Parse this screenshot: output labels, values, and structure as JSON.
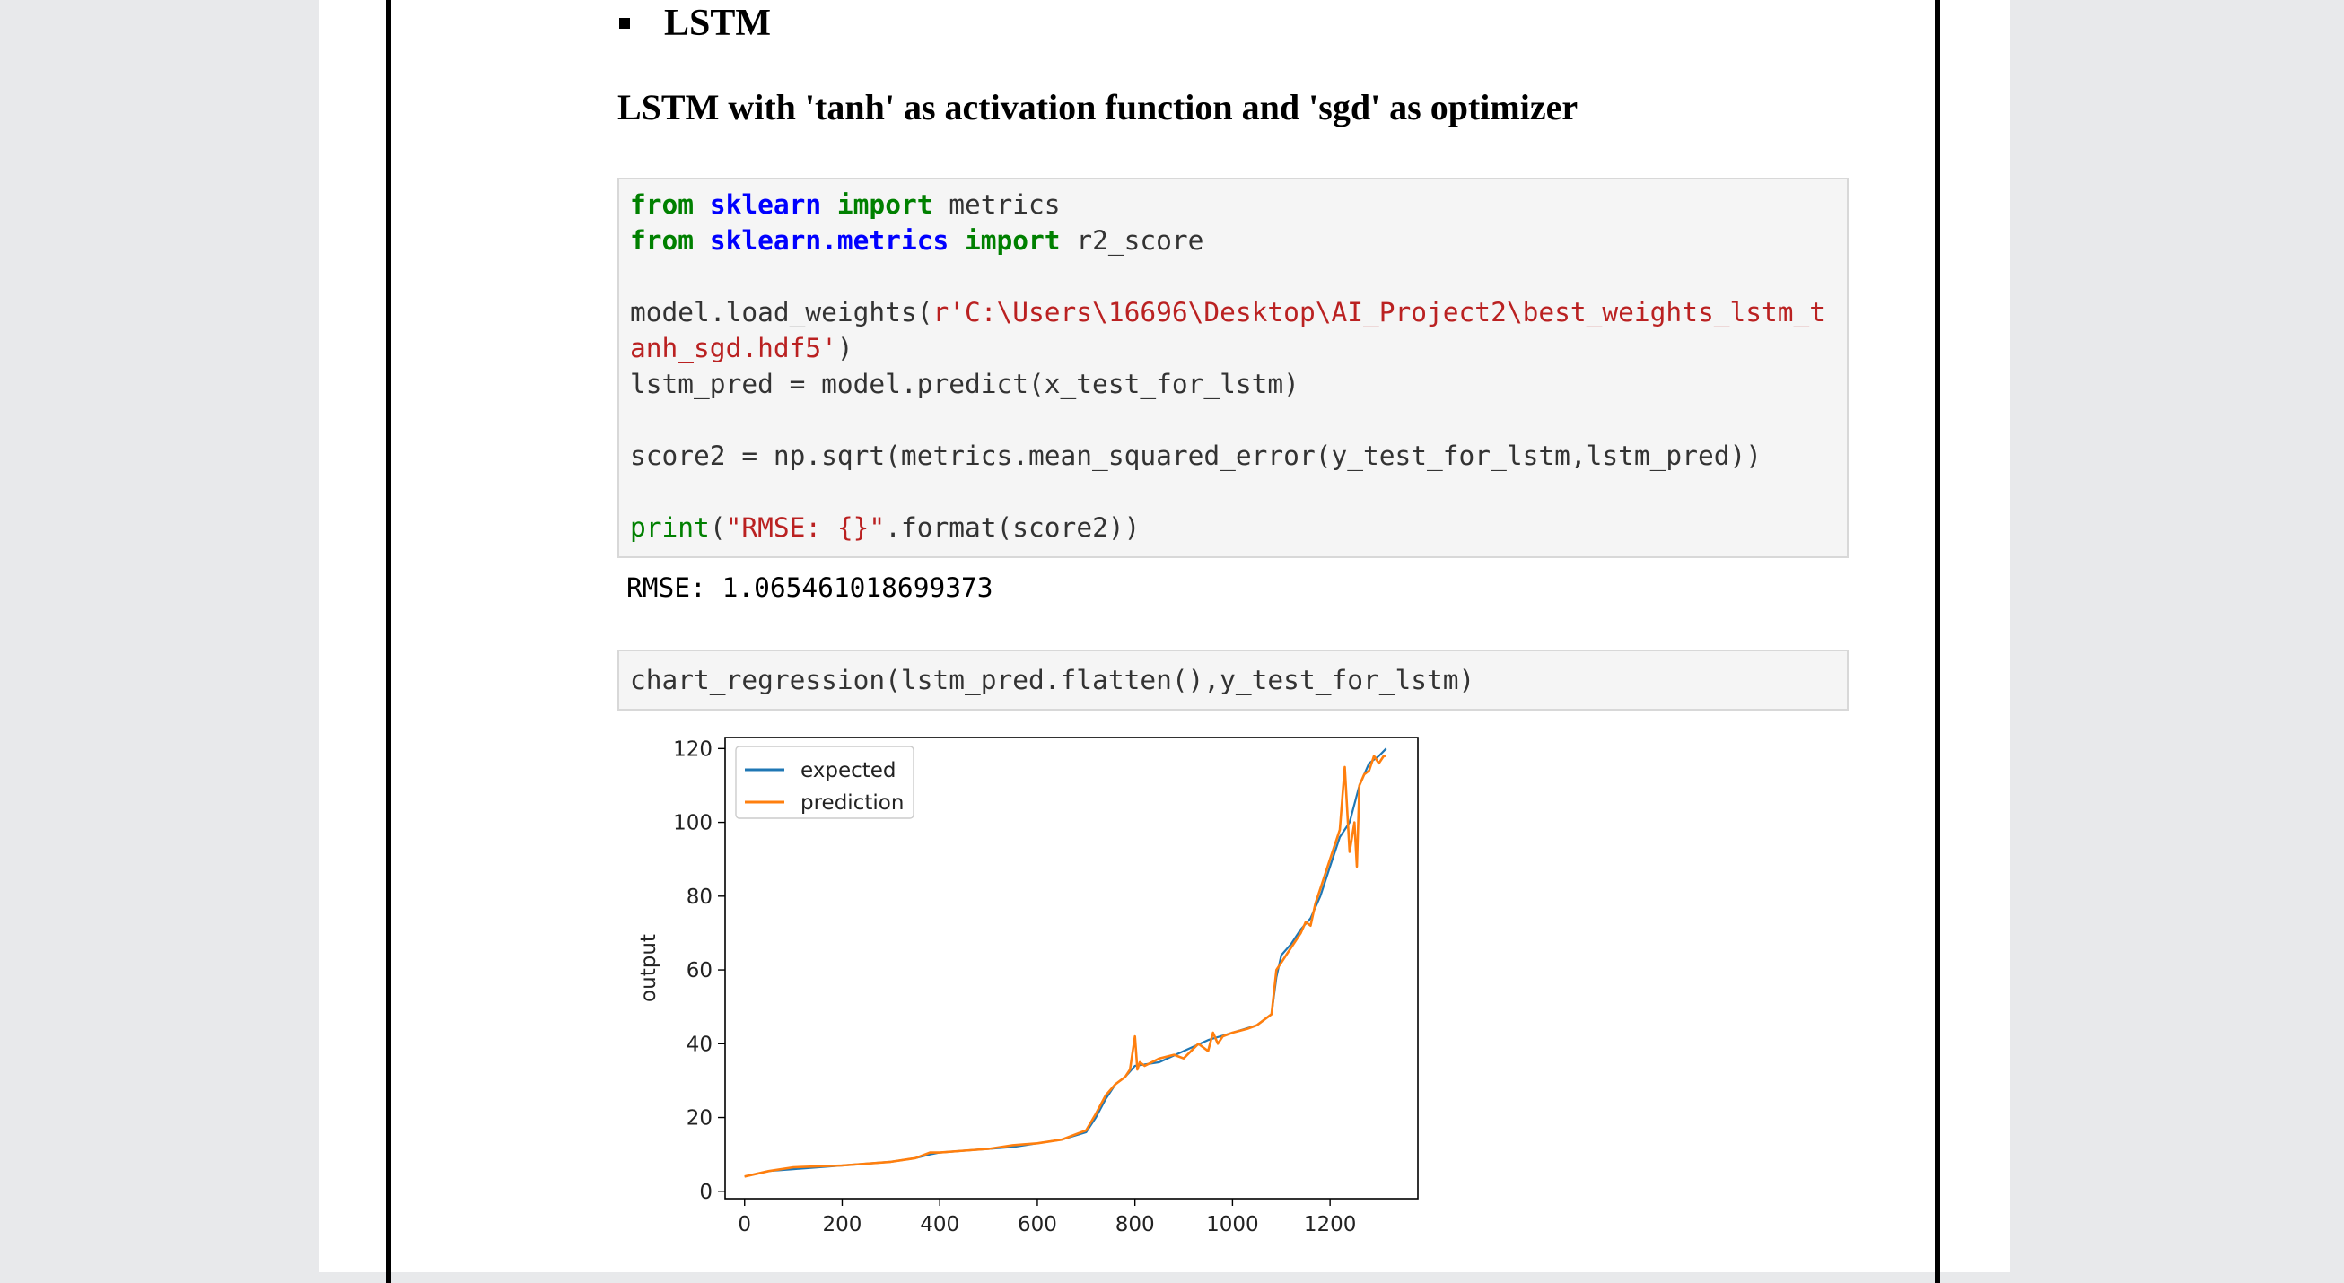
{
  "section": {
    "bullet_title": "LSTM",
    "heading": "LSTM with 'tanh' as activation function and 'sgd' as optimizer"
  },
  "cell1": {
    "lines": [
      [
        {
          "t": "from",
          "c": "kw"
        },
        {
          "t": " ",
          "c": ""
        },
        {
          "t": "sklearn",
          "c": "mod"
        },
        {
          "t": " ",
          "c": ""
        },
        {
          "t": "import",
          "c": "kw"
        },
        {
          "t": " metrics",
          "c": ""
        }
      ],
      [
        {
          "t": "from",
          "c": "kw"
        },
        {
          "t": " ",
          "c": ""
        },
        {
          "t": "sklearn.metrics",
          "c": "mod"
        },
        {
          "t": " ",
          "c": ""
        },
        {
          "t": "import",
          "c": "kw"
        },
        {
          "t": " r2_score",
          "c": ""
        }
      ],
      [],
      [
        {
          "t": "model.load_weights(",
          "c": ""
        },
        {
          "t": "r'C:\\Users\\16696\\Desktop\\AI_Project2\\best_weights_lstm_t",
          "c": "str"
        }
      ],
      [
        {
          "t": "anh_sgd.hdf5'",
          "c": "str"
        },
        {
          "t": ")",
          "c": ""
        }
      ],
      [
        {
          "t": "lstm_pred = model.predict(x_test_for_lstm)",
          "c": ""
        }
      ],
      [],
      [
        {
          "t": "score2 = np.sqrt(metrics.mean_squared_error(y_test_for_lstm,lstm_pred))",
          "c": ""
        }
      ],
      [],
      [
        {
          "t": "print",
          "c": "fn"
        },
        {
          "t": "(",
          "c": ""
        },
        {
          "t": "\"RMSE: {}\"",
          "c": "str"
        },
        {
          "t": ".format(score2))",
          "c": ""
        }
      ]
    ]
  },
  "output1": "RMSE: 1.065461018699373",
  "cell2": {
    "code": "chart_regression(lstm_pred.flatten(),y_test_for_lstm)"
  },
  "colors": {
    "expected": "#1f77b4",
    "prediction": "#ff7f0e"
  },
  "chart_data": {
    "type": "line",
    "title": "",
    "xlabel": "",
    "ylabel": "output",
    "xlim": [
      -40,
      1380
    ],
    "ylim": [
      -2,
      123
    ],
    "xticks": [
      0,
      200,
      400,
      600,
      800,
      1000,
      1200
    ],
    "yticks": [
      0,
      20,
      40,
      60,
      80,
      100,
      120
    ],
    "legend": "upper-left",
    "grid": false,
    "series": [
      {
        "name": "expected",
        "x": [
          0,
          50,
          100,
          200,
          300,
          350,
          380,
          400,
          450,
          500,
          550,
          600,
          650,
          700,
          720,
          740,
          760,
          780,
          800,
          850,
          900,
          950,
          1000,
          1050,
          1080,
          1090,
          1100,
          1120,
          1140,
          1160,
          1180,
          1200,
          1220,
          1240,
          1260,
          1280,
          1300,
          1315
        ],
        "y": [
          4,
          5.5,
          6,
          7,
          8,
          9,
          10,
          10.5,
          11,
          11.5,
          12,
          13,
          14,
          16,
          20,
          25,
          29,
          31,
          34,
          35,
          38,
          41,
          43,
          45,
          48,
          58,
          64,
          67,
          71,
          74,
          80,
          88,
          96,
          100,
          110,
          116,
          118,
          120
        ]
      },
      {
        "name": "prediction",
        "x": [
          0,
          50,
          100,
          200,
          300,
          350,
          380,
          400,
          450,
          500,
          550,
          600,
          650,
          700,
          720,
          740,
          760,
          780,
          790,
          800,
          805,
          810,
          820,
          850,
          880,
          900,
          930,
          950,
          960,
          970,
          980,
          1000,
          1030,
          1050,
          1080,
          1090,
          1100,
          1120,
          1130,
          1140,
          1150,
          1160,
          1170,
          1180,
          1190,
          1200,
          1210,
          1220,
          1230,
          1240,
          1250,
          1255,
          1260,
          1270,
          1280,
          1290,
          1300,
          1310,
          1315
        ],
        "y": [
          4,
          5.5,
          6.5,
          7,
          8,
          9,
          10.5,
          10.5,
          11,
          11.5,
          12.5,
          13,
          14,
          16.5,
          21,
          26,
          29,
          31,
          33,
          42,
          33,
          35,
          34,
          36,
          37,
          36,
          40,
          38,
          43,
          40,
          42,
          43,
          44,
          45,
          48,
          60,
          62,
          66,
          68,
          70,
          73,
          72,
          78,
          82,
          86,
          90,
          94,
          98,
          115,
          92,
          100,
          88,
          110,
          113,
          114,
          118,
          116,
          118,
          118
        ]
      }
    ]
  }
}
